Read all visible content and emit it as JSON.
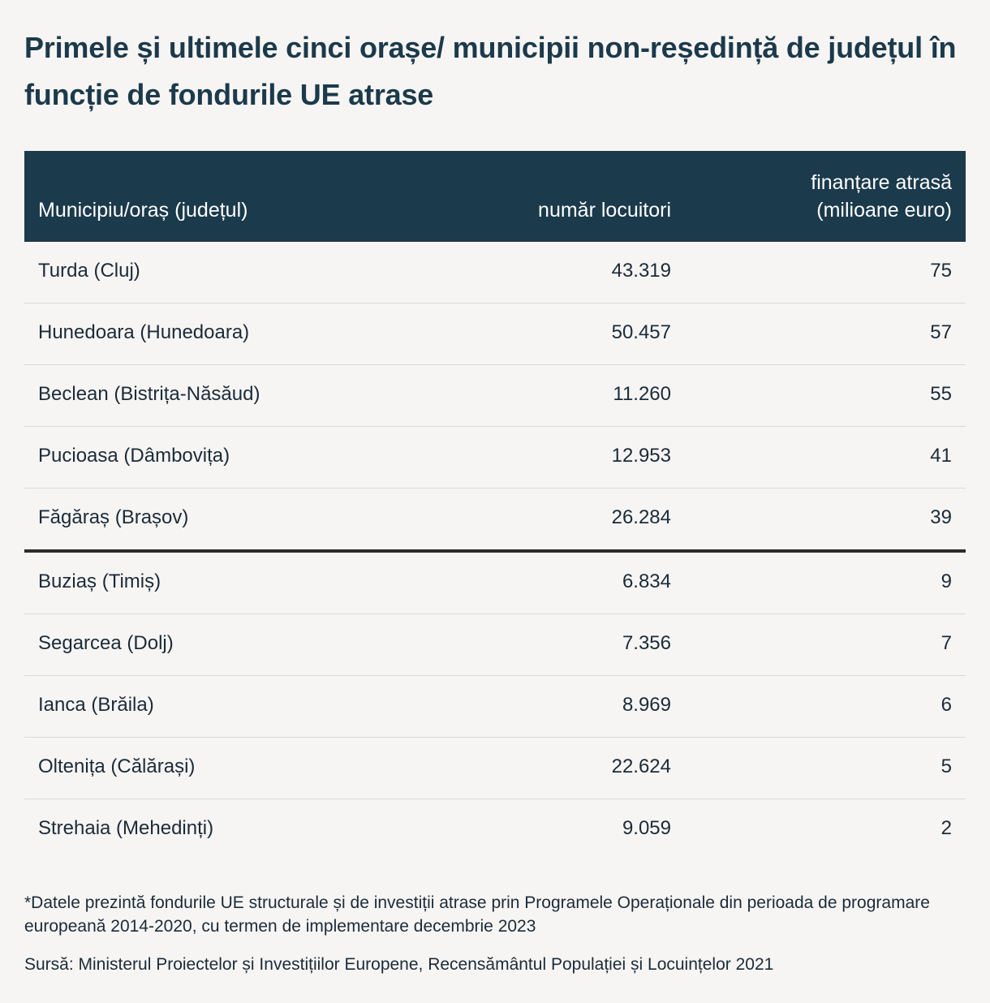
{
  "title": "Primele și ultimele cinci orașe/ municipii non-reședință de județul în funcție de fondurile UE atrase",
  "header": {
    "city": "Municipiu/oraș (județul)",
    "population": "număr locuitori",
    "funding_line1": "finanțare atrasă",
    "funding_line2": "(milioane euro)"
  },
  "rows": [
    {
      "city": "Turda (Cluj)",
      "population": "43.319",
      "funding": "75"
    },
    {
      "city": "Hunedoara (Hunedoara)",
      "population": "50.457",
      "funding": "57"
    },
    {
      "city": "Beclean (Bistrița-Năsăud)",
      "population": "11.260",
      "funding": "55"
    },
    {
      "city": "Pucioasa (Dâmbovița)",
      "population": "12.953",
      "funding": "41"
    },
    {
      "city": "Făgăraș (Brașov)",
      "population": "26.284",
      "funding": "39"
    },
    {
      "city": "Buziaș (Timiș)",
      "population": "6.834",
      "funding": "9"
    },
    {
      "city": "Segarcea (Dolj)",
      "population": "7.356",
      "funding": "7"
    },
    {
      "city": "Ianca (Brăila)",
      "population": "8.969",
      "funding": "6"
    },
    {
      "city": "Oltenița (Călărași)",
      "population": "22.624",
      "funding": "5"
    },
    {
      "city": "Strehaia (Mehedinți)",
      "population": "9.059",
      "funding": "2"
    }
  ],
  "footnote": "*Datele prezintă fondurile UE structurale și de investiții atrase prin Programele Operaționale din perioada de programare europeană 2014-2020, cu termen de implementare decembrie 2023",
  "source": "Sursă: Ministerul Proiectelor și Investițiilor Europene, Recensământul Populației și Locuințelor 2021",
  "colors": {
    "background": "#f7f5f3",
    "header_bg": "#1b3a4c",
    "title": "#1b3a4c",
    "text": "#1b2b3a",
    "divider": "#dcdad7",
    "group_divider": "#2c2c2c"
  }
}
